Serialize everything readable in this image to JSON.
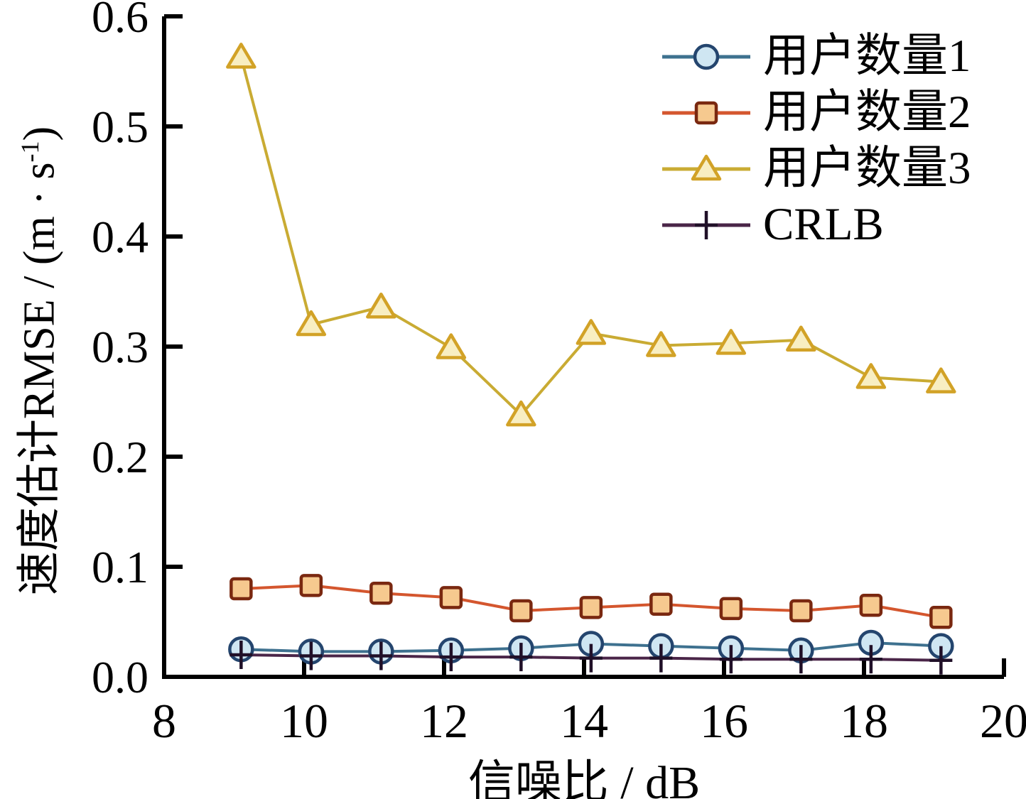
{
  "figure": {
    "xlabel": "信噪比 / dB",
    "ylabel_prefix": "速度估计RMSE / (m · s",
    "ylabel_sup": "-1",
    "ylabel_suffix": ")"
  },
  "chart_data": {
    "type": "line",
    "title": "",
    "xlabel": "信噪比 / dB",
    "ylabel": "速度估计RMSE / (m · s^-1)",
    "xlim": [
      8,
      20
    ],
    "ylim": [
      0.0,
      0.6
    ],
    "grid": false,
    "legend_position": "upper right",
    "axis_color": "#000000",
    "xtick_values": [
      8,
      10,
      12,
      14,
      16,
      18,
      20
    ],
    "xtick_labels": [
      "8",
      "10",
      "12",
      "14",
      "16",
      "18",
      "20"
    ],
    "ytick_values": [
      0.0,
      0.1,
      0.2,
      0.3,
      0.4,
      0.5,
      0.6
    ],
    "ytick_labels": [
      "0.0",
      "0.1",
      "0.2",
      "0.3",
      "0.4",
      "0.5",
      "0.6"
    ],
    "x": [
      9.1,
      10.1,
      11.1,
      12.1,
      13.1,
      14.1,
      15.1,
      16.1,
      17.1,
      18.1,
      19.1
    ],
    "series": [
      {
        "name": "用户数量1",
        "marker": "circle",
        "line_color": "#3e718f",
        "marker_fill": "#cfe6f2",
        "marker_edge": "#24456e",
        "values": [
          0.025,
          0.023,
          0.023,
          0.024,
          0.026,
          0.03,
          0.028,
          0.026,
          0.024,
          0.031,
          0.028
        ]
      },
      {
        "name": "用户数量2",
        "marker": "square",
        "line_color": "#d4562e",
        "marker_fill": "#f6c98f",
        "marker_edge": "#7a2810",
        "values": [
          0.08,
          0.083,
          0.076,
          0.072,
          0.06,
          0.063,
          0.066,
          0.062,
          0.06,
          0.065,
          0.054
        ]
      },
      {
        "name": "用户数量3",
        "marker": "triangle",
        "line_color": "#c9ab33",
        "marker_fill": "#f8eec2",
        "marker_edge": "#d2a227",
        "values": [
          0.563,
          0.32,
          0.336,
          0.299,
          0.238,
          0.312,
          0.301,
          0.303,
          0.306,
          0.272,
          0.268
        ]
      },
      {
        "name": "CRLB",
        "marker": "plus",
        "line_color": "#4a2548",
        "marker_fill": "none",
        "marker_edge": "#201028",
        "values": [
          0.02,
          0.019,
          0.019,
          0.018,
          0.018,
          0.017,
          0.017,
          0.016,
          0.016,
          0.016,
          0.015
        ]
      }
    ]
  }
}
